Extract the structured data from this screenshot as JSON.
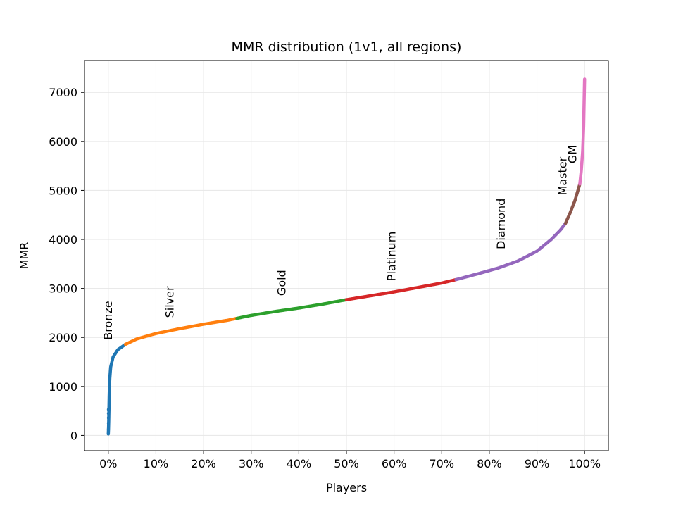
{
  "chart_data": {
    "type": "scatter",
    "title": "MMR distribution (1v1, all regions)",
    "xlabel": "Players",
    "ylabel": "MMR",
    "xlim": [
      -0.05,
      1.05
    ],
    "ylim": [
      -310,
      7650
    ],
    "grid": true,
    "x_ticks": [
      0,
      0.1,
      0.2,
      0.3,
      0.4,
      0.5,
      0.6,
      0.7,
      0.8,
      0.9,
      1.0
    ],
    "x_tick_labels": [
      "0%",
      "10%",
      "20%",
      "30%",
      "40%",
      "50%",
      "60%",
      "70%",
      "80%",
      "90%",
      "100%"
    ],
    "y_ticks": [
      0,
      1000,
      2000,
      3000,
      4000,
      5000,
      6000,
      7000
    ],
    "y_tick_labels": [
      "0",
      "1000",
      "2000",
      "3000",
      "4000",
      "5000",
      "6000",
      "7000"
    ],
    "curve": [
      [
        0.0,
        30
      ],
      [
        0.0005,
        150
      ],
      [
        0.001,
        350
      ],
      [
        0.0015,
        600
      ],
      [
        0.002,
        900
      ],
      [
        0.003,
        1150
      ],
      [
        0.005,
        1400
      ],
      [
        0.01,
        1600
      ],
      [
        0.02,
        1750
      ],
      [
        0.036,
        1860
      ],
      [
        0.06,
        1970
      ],
      [
        0.1,
        2080
      ],
      [
        0.15,
        2180
      ],
      [
        0.2,
        2270
      ],
      [
        0.25,
        2350
      ],
      [
        0.27,
        2390
      ],
      [
        0.3,
        2450
      ],
      [
        0.35,
        2530
      ],
      [
        0.4,
        2600
      ],
      [
        0.45,
        2680
      ],
      [
        0.5,
        2770
      ],
      [
        0.55,
        2850
      ],
      [
        0.6,
        2930
      ],
      [
        0.65,
        3020
      ],
      [
        0.7,
        3110
      ],
      [
        0.73,
        3180
      ],
      [
        0.78,
        3310
      ],
      [
        0.82,
        3420
      ],
      [
        0.86,
        3560
      ],
      [
        0.9,
        3760
      ],
      [
        0.93,
        4000
      ],
      [
        0.95,
        4200
      ],
      [
        0.96,
        4330
      ],
      [
        0.97,
        4550
      ],
      [
        0.98,
        4800
      ],
      [
        0.99,
        5130
      ],
      [
        0.993,
        5400
      ],
      [
        0.996,
        5800
      ],
      [
        0.998,
        6300
      ],
      [
        0.999,
        6800
      ],
      [
        1.0,
        7270
      ]
    ],
    "series": [
      {
        "name": "Bronze",
        "color": "#1f77b4",
        "x_range": [
          0.0,
          0.036
        ],
        "label_x": 0.0,
        "label_y": 1950
      },
      {
        "name": "Silver",
        "color": "#ff7f0e",
        "x_range": [
          0.036,
          0.27
        ],
        "label_x": 0.13,
        "label_y": 2400
      },
      {
        "name": "Gold",
        "color": "#2ca02c",
        "x_range": [
          0.27,
          0.5
        ],
        "label_x": 0.365,
        "label_y": 2850
      },
      {
        "name": "Platinum",
        "color": "#d62728",
        "x_range": [
          0.5,
          0.73
        ],
        "label_x": 0.595,
        "label_y": 3150
      },
      {
        "name": "Diamond",
        "color": "#9467bd",
        "x_range": [
          0.73,
          0.96
        ],
        "label_x": 0.825,
        "label_y": 3800
      },
      {
        "name": "Master",
        "color": "#8c564b",
        "x_range": [
          0.96,
          0.99
        ],
        "label_x": 0.955,
        "label_y": 4900
      },
      {
        "name": "GM",
        "color": "#e377c2",
        "x_range": [
          0.99,
          1.0
        ],
        "label_x": 0.975,
        "label_y": 5550
      }
    ],
    "outliers": [
      {
        "x": 0.0,
        "y": 30
      },
      {
        "x": 0.0,
        "y": 130
      },
      {
        "x": 0.0,
        "y": 250
      },
      {
        "x": 0.0,
        "y": 360
      },
      {
        "x": 0.0,
        "y": 450
      },
      {
        "x": 0.0,
        "y": 530
      }
    ]
  }
}
